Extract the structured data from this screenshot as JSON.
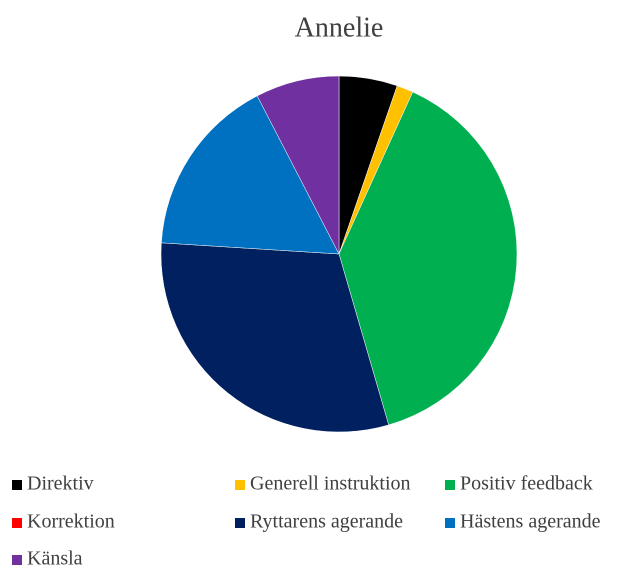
{
  "chart_data": {
    "type": "pie",
    "title": "Annelie",
    "categories": [
      "Direktiv",
      "Generell instruktion",
      "Positiv feedback",
      "Korrektion",
      "Ryttarens agerande",
      "Hästens agerande",
      "Känsla"
    ],
    "values": [
      5.3,
      1.5,
      38.7,
      0,
      30.5,
      16.4,
      7.6
    ],
    "colors": [
      "#000000",
      "#ffc000",
      "#00b050",
      "#ff0000",
      "#002060",
      "#0070c0",
      "#7030a0"
    ],
    "legend": "bottom"
  }
}
